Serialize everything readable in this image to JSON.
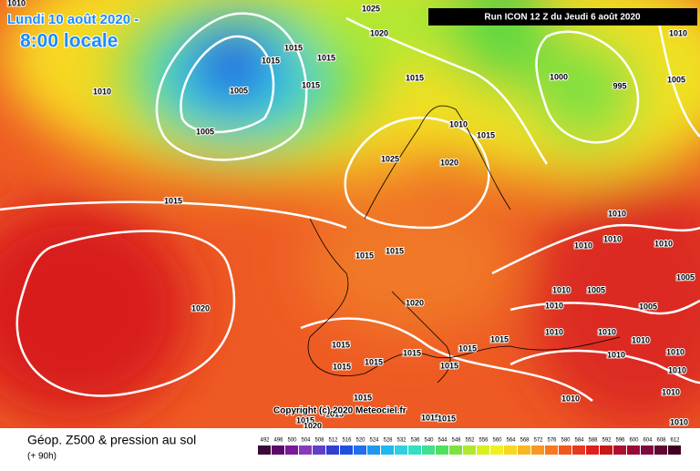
{
  "header": {
    "date": "Lundi 10 août 2020 -",
    "time": "8:00 locale",
    "run": "Run ICON 12 Z du Jeudi 6 août 2020"
  },
  "footer": {
    "title": "Géop. Z500 & pression au sol",
    "lead": "(+ 90h)",
    "copyright": "Copyright (c) 2020 Meteociel.fr"
  },
  "scale": {
    "ticks": [
      492,
      496,
      500,
      504,
      508,
      512,
      516,
      520,
      524,
      528,
      532,
      536,
      540,
      544,
      548,
      552,
      556,
      560,
      564,
      568,
      572,
      576,
      580,
      584,
      588,
      592,
      596,
      600,
      604,
      608,
      612
    ],
    "colors": [
      "#3a0a3a",
      "#5a0a6a",
      "#7a1a9a",
      "#8a3ab8",
      "#6040c8",
      "#3040d0",
      "#2050e0",
      "#2070f0",
      "#2098f0",
      "#20b8f0",
      "#30d0e0",
      "#30e0c0",
      "#40e090",
      "#50e060",
      "#80e040",
      "#b0e830",
      "#d8f020",
      "#f0f020",
      "#f8d820",
      "#f8b820",
      "#f89820",
      "#f87820",
      "#f05820",
      "#e83820",
      "#e02020",
      "#c81818",
      "#b01030",
      "#980838",
      "#800840",
      "#600830",
      "#400020"
    ]
  },
  "isobars": [
    1010,
    1025,
    1020,
    1015,
    1015,
    1015,
    1015,
    1015,
    1005,
    1005,
    1010,
    1000,
    995,
    1005,
    1010,
    1010,
    1015,
    1025,
    1020,
    1015,
    1015,
    1015,
    1020,
    1020,
    1010,
    1010,
    1010,
    1010,
    1005,
    1010,
    1010,
    1005,
    1005,
    1010,
    1010,
    1010,
    1010,
    1010,
    1010,
    1010,
    1010,
    1010,
    1015,
    1015,
    1015,
    1015,
    1015,
    1015,
    1015,
    1015,
    1015,
    1015,
    1015,
    1015,
    1020
  ]
}
